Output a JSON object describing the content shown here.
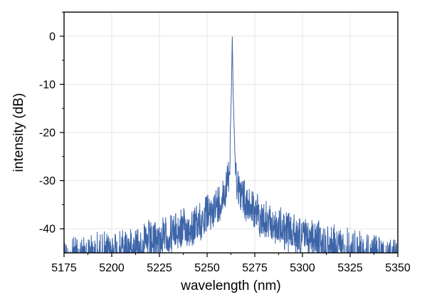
{
  "chart_data": {
    "type": "line",
    "xlabel": "wavelength (nm)",
    "ylabel": "intensity (dB)",
    "xlim": [
      5175,
      5350
    ],
    "ylim": [
      -45,
      5
    ],
    "x_ticks": [
      5175,
      5200,
      5225,
      5250,
      5275,
      5300,
      5325,
      5350
    ],
    "x_tick_labels": [
      "5175",
      "5200",
      "5225",
      "5250",
      "5275",
      "5300",
      "5325",
      "5350"
    ],
    "y_ticks": [
      0,
      -10,
      -20,
      -30,
      -40
    ],
    "y_tick_labels": [
      "0",
      "-10",
      "-20",
      "-30",
      "-40"
    ],
    "grid": true,
    "line_color": "#3c64a8",
    "peak": {
      "x": 5263.2,
      "y": 0
    },
    "series": [
      {
        "x": [
          5175,
          5185,
          5195,
          5205,
          5215,
          5225,
          5235,
          5245,
          5252,
          5256,
          5259,
          5261,
          5262,
          5262.7,
          5263.2,
          5263.7,
          5264.4,
          5266,
          5268,
          5271,
          5275,
          5282,
          5292,
          5302,
          5312,
          5322,
          5332,
          5342,
          5350
        ],
        "y": [
          -42.5,
          -42,
          -41.5,
          -40.5,
          -39.5,
          -38.5,
          -37,
          -35.5,
          -33,
          -31,
          -29,
          -26,
          -22,
          -12,
          0,
          -12,
          -22,
          -27,
          -29.5,
          -31,
          -33,
          -35.5,
          -37,
          -38.5,
          -39.5,
          -40.5,
          -41.5,
          -42,
          -42.5
        ]
      }
    ]
  }
}
